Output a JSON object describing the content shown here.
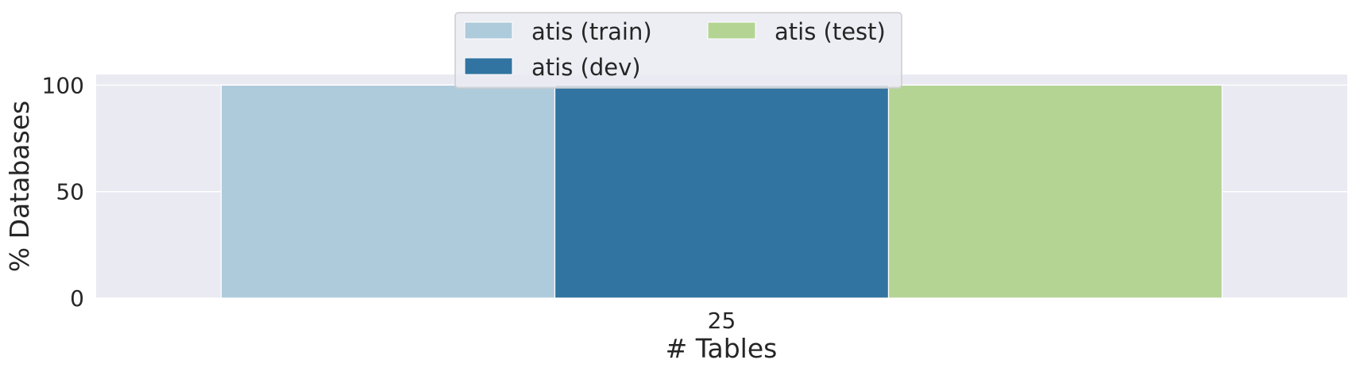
{
  "chart_data": {
    "type": "bar",
    "categories": [
      "25"
    ],
    "series": [
      {
        "name": "atis (train)",
        "values": [
          100
        ],
        "color": "#aecbdc"
      },
      {
        "name": "atis (dev)",
        "values": [
          100
        ],
        "color": "#3274a1"
      },
      {
        "name": "atis (test)",
        "values": [
          100
        ],
        "color": "#b4d494"
      }
    ],
    "xlabel": "# Tables",
    "ylabel": "% Databases",
    "ylim": [
      0,
      105
    ],
    "yticks": [
      0,
      50,
      100
    ],
    "grid": true,
    "legend_position": "top-center",
    "plot_background": "#eaeaf2",
    "grid_color": "#ffffff"
  }
}
